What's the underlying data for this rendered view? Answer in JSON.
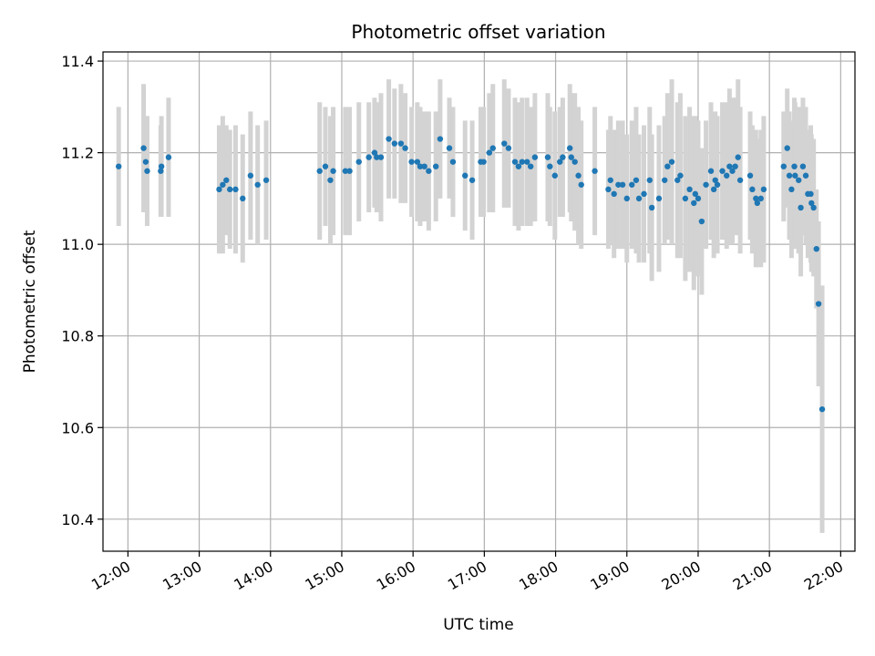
{
  "chart_data": {
    "type": "scatter",
    "title": "Photometric offset variation",
    "xlabel": "UTC time",
    "ylabel": "Photometric offset",
    "x_unit": "hours UTC",
    "xlim": [
      11.65,
      22.2
    ],
    "ylim": [
      10.33,
      11.42
    ],
    "grid": true,
    "x_ticks": [
      {
        "value": 12,
        "label": "12:00"
      },
      {
        "value": 13,
        "label": "13:00"
      },
      {
        "value": 14,
        "label": "14:00"
      },
      {
        "value": 15,
        "label": "15:00"
      },
      {
        "value": 16,
        "label": "16:00"
      },
      {
        "value": 17,
        "label": "17:00"
      },
      {
        "value": 18,
        "label": "18:00"
      },
      {
        "value": 19,
        "label": "19:00"
      },
      {
        "value": 20,
        "label": "20:00"
      },
      {
        "value": 21,
        "label": "21:00"
      },
      {
        "value": 22,
        "label": "22:00"
      }
    ],
    "y_ticks": [
      {
        "value": 10.4,
        "label": "10.4"
      },
      {
        "value": 10.6,
        "label": "10.6"
      },
      {
        "value": 10.8,
        "label": "10.8"
      },
      {
        "value": 11.0,
        "label": "11.0"
      },
      {
        "value": 11.2,
        "label": "11.2"
      },
      {
        "value": 11.4,
        "label": "11.4"
      }
    ],
    "colors": {
      "point": "#1f77b4",
      "errorbar": "#d3d3d3",
      "grid": "#b0b0b0"
    },
    "series": [
      {
        "points": [
          [
            11.87,
            11.17,
            0.13
          ],
          [
            12.22,
            11.21,
            0.14
          ],
          [
            12.25,
            11.18,
            0.1
          ],
          [
            12.27,
            11.16,
            0.12
          ],
          [
            12.46,
            11.16,
            0.1
          ],
          [
            12.47,
            11.17,
            0.11
          ],
          [
            12.57,
            11.19,
            0.13
          ],
          [
            13.28,
            11.12,
            0.14
          ],
          [
            13.33,
            11.13,
            0.15
          ],
          [
            13.38,
            11.14,
            0.12
          ],
          [
            13.43,
            11.12,
            0.13
          ],
          [
            13.51,
            11.12,
            0.14
          ],
          [
            13.61,
            11.1,
            0.14
          ],
          [
            13.72,
            11.15,
            0.14
          ],
          [
            13.82,
            11.13,
            0.13
          ],
          [
            13.94,
            11.14,
            0.13
          ],
          [
            14.69,
            11.16,
            0.15
          ],
          [
            14.77,
            11.17,
            0.13
          ],
          [
            14.84,
            11.14,
            0.14
          ],
          [
            14.88,
            11.16,
            0.14
          ],
          [
            15.05,
            11.16,
            0.14
          ],
          [
            15.11,
            11.16,
            0.14
          ],
          [
            15.24,
            11.18,
            0.13
          ],
          [
            15.38,
            11.19,
            0.12
          ],
          [
            15.46,
            11.2,
            0.12
          ],
          [
            15.49,
            11.19,
            0.12
          ],
          [
            15.55,
            11.19,
            0.14
          ],
          [
            15.66,
            11.23,
            0.13
          ],
          [
            15.74,
            11.22,
            0.12
          ],
          [
            15.83,
            11.22,
            0.13
          ],
          [
            15.89,
            11.21,
            0.12
          ],
          [
            15.98,
            11.18,
            0.12
          ],
          [
            16.06,
            11.18,
            0.13
          ],
          [
            16.1,
            11.17,
            0.13
          ],
          [
            16.16,
            11.17,
            0.12
          ],
          [
            16.22,
            11.16,
            0.13
          ],
          [
            16.32,
            11.17,
            0.12
          ],
          [
            16.38,
            11.23,
            0.13
          ],
          [
            16.51,
            11.21,
            0.11
          ],
          [
            16.56,
            11.18,
            0.12
          ],
          [
            16.73,
            11.15,
            0.12
          ],
          [
            16.83,
            11.14,
            0.13
          ],
          [
            16.95,
            11.18,
            0.12
          ],
          [
            16.99,
            11.18,
            0.12
          ],
          [
            17.07,
            11.2,
            0.13
          ],
          [
            17.12,
            11.21,
            0.14
          ],
          [
            17.28,
            11.22,
            0.14
          ],
          [
            17.34,
            11.21,
            0.13
          ],
          [
            17.43,
            11.18,
            0.14
          ],
          [
            17.48,
            11.17,
            0.14
          ],
          [
            17.53,
            11.18,
            0.14
          ],
          [
            17.6,
            11.18,
            0.14
          ],
          [
            17.65,
            11.17,
            0.13
          ],
          [
            17.71,
            11.19,
            0.14
          ],
          [
            17.89,
            11.19,
            0.14
          ],
          [
            17.92,
            11.17,
            0.13
          ],
          [
            17.99,
            11.15,
            0.14
          ],
          [
            18.06,
            11.18,
            0.12
          ],
          [
            18.1,
            11.19,
            0.13
          ],
          [
            18.2,
            11.21,
            0.14
          ],
          [
            18.22,
            11.19,
            0.14
          ],
          [
            18.27,
            11.18,
            0.15
          ],
          [
            18.32,
            11.15,
            0.15
          ],
          [
            18.36,
            11.13,
            0.14
          ],
          [
            18.55,
            11.16,
            0.14
          ],
          [
            18.74,
            11.12,
            0.13
          ],
          [
            18.77,
            11.14,
            0.14
          ],
          [
            18.82,
            11.11,
            0.14
          ],
          [
            18.88,
            11.13,
            0.14
          ],
          [
            18.94,
            11.13,
            0.14
          ],
          [
            19.0,
            11.1,
            0.14
          ],
          [
            19.07,
            11.13,
            0.14
          ],
          [
            19.13,
            11.14,
            0.16
          ],
          [
            19.17,
            11.1,
            0.14
          ],
          [
            19.24,
            11.11,
            0.15
          ],
          [
            19.32,
            11.14,
            0.16
          ],
          [
            19.35,
            11.08,
            0.16
          ],
          [
            19.45,
            11.1,
            0.16
          ],
          [
            19.53,
            11.14,
            0.14
          ],
          [
            19.57,
            11.17,
            0.16
          ],
          [
            19.63,
            11.18,
            0.18
          ],
          [
            19.71,
            11.14,
            0.17
          ],
          [
            19.75,
            11.15,
            0.18
          ],
          [
            19.82,
            11.1,
            0.18
          ],
          [
            19.88,
            11.12,
            0.18
          ],
          [
            19.94,
            11.09,
            0.19
          ],
          [
            19.96,
            11.11,
            0.17
          ],
          [
            20.0,
            11.1,
            0.17
          ],
          [
            20.05,
            11.05,
            0.16
          ],
          [
            20.11,
            11.13,
            0.14
          ],
          [
            20.18,
            11.16,
            0.15
          ],
          [
            20.22,
            11.12,
            0.15
          ],
          [
            20.24,
            11.14,
            0.15
          ],
          [
            20.27,
            11.13,
            0.15
          ],
          [
            20.34,
            11.16,
            0.15
          ],
          [
            20.4,
            11.15,
            0.16
          ],
          [
            20.44,
            11.17,
            0.17
          ],
          [
            20.48,
            11.16,
            0.16
          ],
          [
            20.52,
            11.17,
            0.15
          ],
          [
            20.56,
            11.19,
            0.17
          ],
          [
            20.59,
            11.14,
            0.16
          ],
          [
            20.73,
            11.15,
            0.14
          ],
          [
            20.76,
            11.12,
            0.14
          ],
          [
            20.81,
            11.1,
            0.15
          ],
          [
            20.83,
            11.09,
            0.14
          ],
          [
            20.88,
            11.1,
            0.15
          ],
          [
            20.92,
            11.12,
            0.16
          ],
          [
            21.2,
            11.17,
            0.12
          ],
          [
            21.25,
            11.21,
            0.13
          ],
          [
            21.28,
            11.15,
            0.14
          ],
          [
            21.31,
            11.12,
            0.15
          ],
          [
            21.35,
            11.17,
            0.15
          ],
          [
            21.36,
            11.15,
            0.16
          ],
          [
            21.41,
            11.14,
            0.16
          ],
          [
            21.44,
            11.08,
            0.15
          ],
          [
            21.47,
            11.17,
            0.15
          ],
          [
            21.51,
            11.15,
            0.15
          ],
          [
            21.54,
            11.11,
            0.14
          ],
          [
            21.58,
            11.11,
            0.15
          ],
          [
            21.59,
            11.09,
            0.15
          ],
          [
            21.62,
            11.08,
            0.15
          ],
          [
            21.66,
            10.99,
            0.13
          ],
          [
            21.69,
            10.87,
            0.18
          ],
          [
            21.74,
            10.64,
            0.27
          ]
        ]
      }
    ]
  }
}
